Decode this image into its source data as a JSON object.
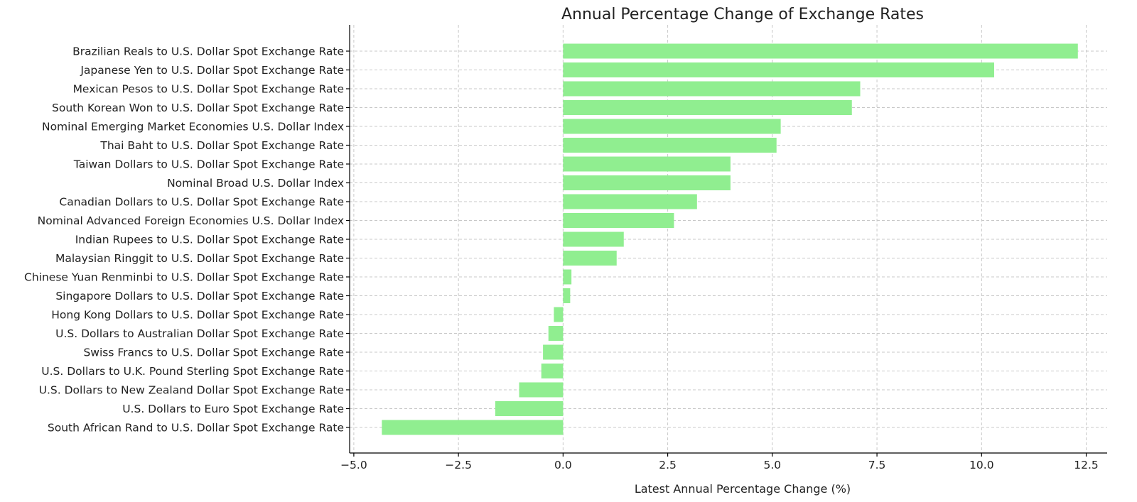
{
  "chart_data": {
    "type": "bar",
    "orientation": "horizontal",
    "title": "Annual Percentage Change of Exchange Rates",
    "xlabel": "Latest Annual Percentage Change (%)",
    "ylabel": "",
    "xlim": [
      -5.1,
      13.0
    ],
    "xticks": [
      -5.0,
      -2.5,
      0.0,
      2.5,
      5.0,
      7.5,
      10.0,
      12.5
    ],
    "xtick_labels": [
      "−5.0",
      "−2.5",
      "0.0",
      "2.5",
      "5.0",
      "7.5",
      "10.0",
      "12.5"
    ],
    "grid": true,
    "bar_color": "#90ee90",
    "categories": [
      "Brazilian Reals to U.S. Dollar Spot Exchange Rate",
      "Japanese Yen to U.S. Dollar Spot Exchange Rate",
      "Mexican Pesos to U.S. Dollar Spot Exchange Rate",
      "South Korean Won to U.S. Dollar Spot Exchange Rate",
      "Nominal Emerging Market Economies U.S. Dollar Index",
      "Thai Baht to U.S. Dollar Spot Exchange Rate",
      "Taiwan Dollars to U.S. Dollar Spot Exchange Rate",
      "Nominal Broad U.S. Dollar Index",
      "Canadian Dollars to U.S. Dollar Spot Exchange Rate",
      "Nominal Advanced Foreign Economies U.S. Dollar Index",
      "Indian Rupees to U.S. Dollar Spot Exchange Rate",
      "Malaysian Ringgit to U.S. Dollar Spot Exchange Rate",
      "Chinese Yuan Renminbi to U.S. Dollar Spot Exchange Rate",
      "Singapore Dollars to U.S. Dollar Spot Exchange Rate",
      "Hong Kong Dollars to U.S. Dollar Spot Exchange Rate",
      "U.S. Dollars to Australian Dollar Spot Exchange Rate",
      "Swiss Francs to U.S. Dollar Spot Exchange Rate",
      "U.S. Dollars to U.K. Pound Sterling Spot Exchange Rate",
      "U.S. Dollars to New Zealand Dollar Spot Exchange Rate",
      "U.S. Dollars to Euro Spot Exchange Rate",
      "South African Rand to U.S. Dollar Spot Exchange Rate"
    ],
    "values": [
      12.3,
      10.3,
      7.1,
      6.9,
      5.2,
      5.1,
      4.0,
      4.0,
      3.2,
      2.65,
      1.45,
      1.28,
      0.2,
      0.17,
      -0.22,
      -0.35,
      -0.48,
      -0.52,
      -1.05,
      -1.62,
      -4.33
    ]
  }
}
